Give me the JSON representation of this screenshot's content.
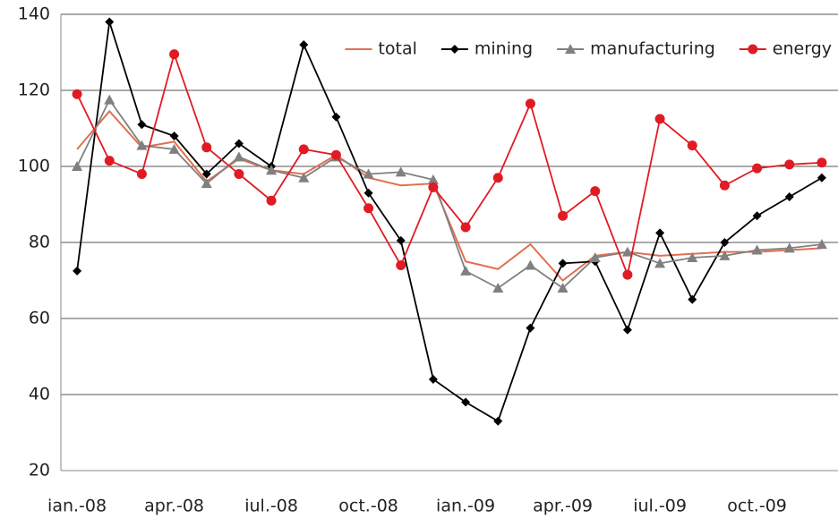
{
  "chart_data": {
    "type": "line",
    "categories": [
      "ian.-08",
      null,
      null,
      "apr.-08",
      null,
      null,
      "iul.-08",
      null,
      null,
      "oct.-08",
      null,
      null,
      "ian.-09",
      null,
      null,
      "apr.-09",
      null,
      null,
      "iul.-09",
      null,
      null,
      "oct.-09",
      null,
      null
    ],
    "series": [
      {
        "name": "total",
        "color": "#e07050",
        "marker": "none",
        "values": [
          104.5,
          114.5,
          105,
          106.5,
          96,
          102,
          99,
          98,
          103,
          97,
          95,
          95.5,
          75,
          73,
          79.5,
          70,
          76.5,
          77.5,
          76.5,
          77,
          77.5,
          77.5,
          78,
          78.5
        ]
      },
      {
        "name": "mining",
        "color": "#000000",
        "marker": "diamond",
        "values": [
          72.5,
          138,
          111,
          108,
          98,
          106,
          100,
          132,
          113,
          93,
          80.5,
          44,
          38,
          33,
          57.5,
          74.5,
          75,
          57,
          82.5,
          65,
          80,
          87,
          92,
          97
        ]
      },
      {
        "name": "manufacturing",
        "color": "#808080",
        "marker": "triangle",
        "values": [
          100,
          117.5,
          105.5,
          104.5,
          95.5,
          102.5,
          99,
          97,
          102.5,
          98,
          98.5,
          96.5,
          72.5,
          68,
          74,
          68,
          76,
          77.5,
          74.5,
          76,
          76.5,
          78,
          78.5,
          79.5
        ]
      },
      {
        "name": "energy",
        "color": "#e01b24",
        "marker": "circle",
        "values": [
          119,
          101.5,
          98,
          129.5,
          105,
          98,
          91,
          104.5,
          103,
          89,
          74,
          94.5,
          84,
          97,
          116.5,
          87,
          93.5,
          71.5,
          112.5,
          105.5,
          95,
          99.5,
          100.5,
          101
        ]
      }
    ],
    "ylim": [
      20,
      140
    ],
    "yticks": [
      20,
      40,
      60,
      80,
      100,
      120,
      140
    ],
    "grid": true,
    "legend": "upper right"
  }
}
